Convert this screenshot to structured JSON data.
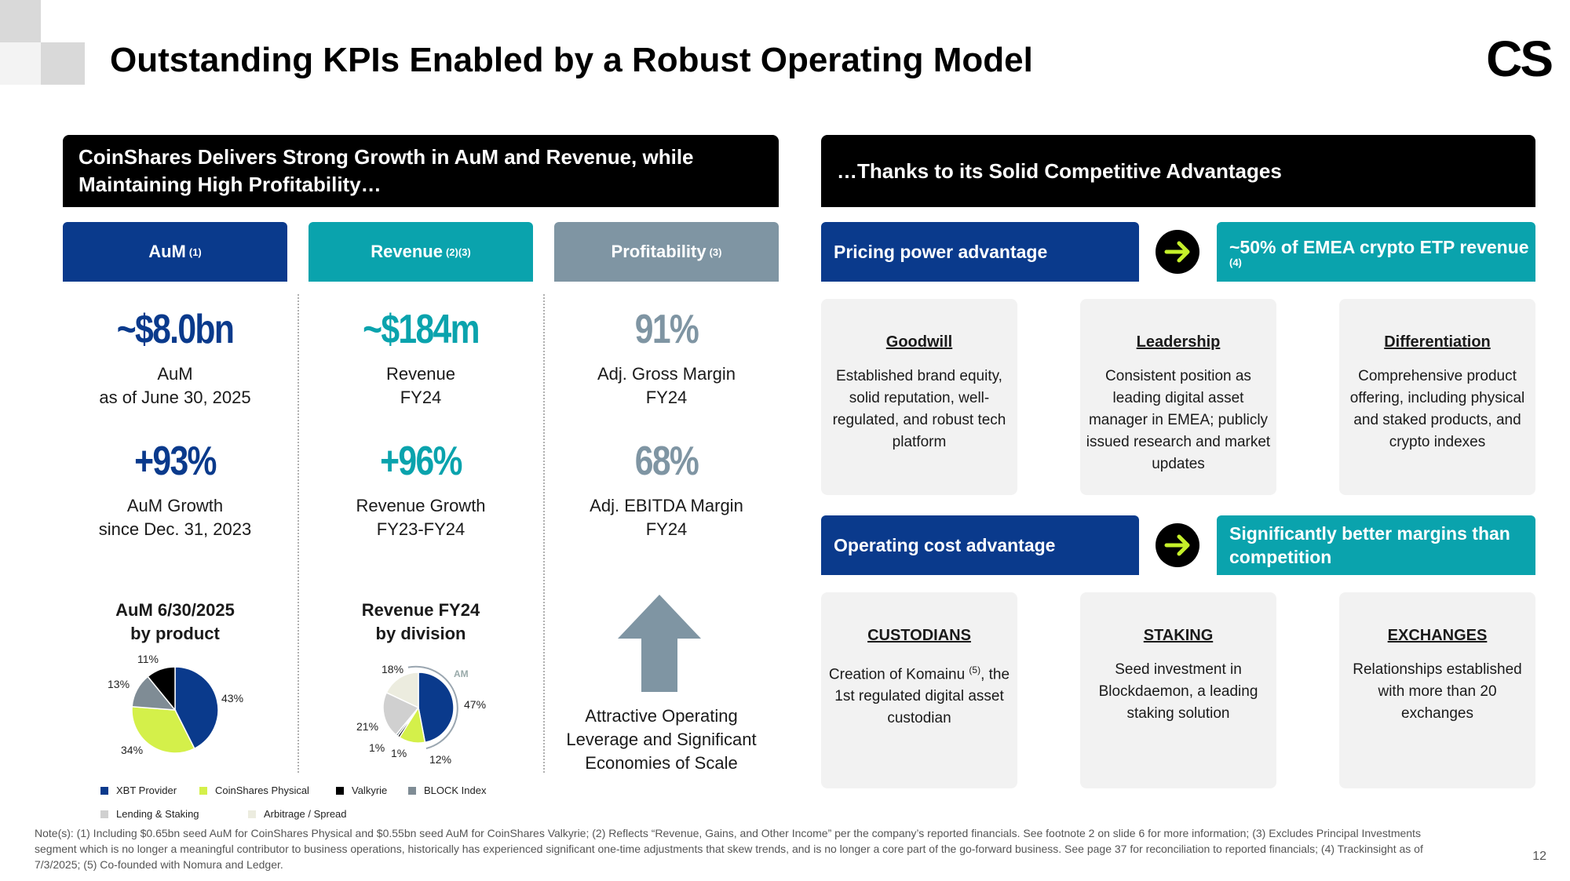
{
  "title": "Outstanding KPIs Enabled by a Robust Operating Model",
  "logo": "CS",
  "left_header": {
    "line1": "CoinShares Delivers Strong Growth in AuM and Revenue, while",
    "line2": "Maintaining High Profitability…"
  },
  "right_header": "…Thanks to its Solid Competitive Advantages",
  "tabs": [
    {
      "label": "AuM",
      "note": "(1)",
      "color": "#0a3a8c"
    },
    {
      "label": "Revenue",
      "note": "(2)(3)",
      "color": "#0aa3ad"
    },
    {
      "label": "Profitability",
      "note": "(3)",
      "color": "#7f95a3"
    }
  ],
  "kpis": {
    "aum": {
      "big1": "~$8.0bn",
      "sub1a": "AuM",
      "sub1b": "as of June 30, 2025",
      "big2": "+93%",
      "sub2a": "AuM Growth",
      "sub2b": "since Dec. 31, 2023",
      "color": "#0a3a8c"
    },
    "revenue": {
      "big1": "~$184m",
      "sub1a": "Revenue",
      "sub1b": "FY24",
      "big2": "+96%",
      "sub2a": "Revenue Growth",
      "sub2b": "FY23-FY24",
      "color": "#0aa3ad"
    },
    "profit": {
      "big1": "91%",
      "sub1a": "Adj. Gross Margin",
      "sub1b": "FY24",
      "big2": "68%",
      "sub2a": "Adj. EBITDA Margin",
      "sub2b": "FY24",
      "color": "#7f95a3"
    }
  },
  "charts": {
    "aum_title1": "AuM 6/30/2025",
    "aum_title2": "by product",
    "rev_title1": "Revenue FY24",
    "rev_title2": "by division",
    "am_label": "AM"
  },
  "chart_data": [
    {
      "type": "pie",
      "title": "AuM 6/30/2025 by product",
      "slices": [
        {
          "name": "XBT Provider",
          "value": 43,
          "label": "43%",
          "color": "#0a3a8c"
        },
        {
          "name": "CoinShares Physical",
          "value": 34,
          "label": "34%",
          "color": "#d4f04a"
        },
        {
          "name": "BLOCK Index",
          "value": 13,
          "label": "13%",
          "color": "#7f8c95"
        },
        {
          "name": "Valkyrie",
          "value": 11,
          "label": "11%",
          "color": "#000000"
        }
      ]
    },
    {
      "type": "pie",
      "title": "Revenue FY24 by division",
      "slices": [
        {
          "name": "XBT Provider",
          "value": 47,
          "label": "47%",
          "color": "#0a3a8c"
        },
        {
          "name": "CoinShares Physical",
          "value": 12,
          "label": "12%",
          "color": "#d4f04a"
        },
        {
          "name": "Valkyrie",
          "value": 1,
          "label": "1%",
          "color": "#000000"
        },
        {
          "name": "BLOCK Index",
          "value": 1,
          "label": "1%",
          "color": "#7f8c95"
        },
        {
          "name": "Lending & Staking",
          "value": 21,
          "label": "21%",
          "color": "#d0d0d0"
        },
        {
          "name": "Arbitrage / Spread",
          "value": 18,
          "label": "18%",
          "color": "#ececdf"
        }
      ]
    }
  ],
  "legend": [
    {
      "label": "XBT Provider",
      "color": "#0a3a8c"
    },
    {
      "label": "CoinShares Physical",
      "color": "#d4f04a"
    },
    {
      "label": "Valkyrie",
      "color": "#000000"
    },
    {
      "label": "BLOCK Index",
      "color": "#7f8c95"
    },
    {
      "label": "Lending & Staking",
      "color": "#d0d0d0"
    },
    {
      "label": "Arbitrage / Spread",
      "color": "#ececdf"
    }
  ],
  "leverage": {
    "line1": "Attractive Operating",
    "line2": "Leverage and Significant",
    "line3": "Economies of Scale"
  },
  "pricing": {
    "label": "Pricing power advantage",
    "result": "~50% of EMEA crypto ETP revenue",
    "result_note": "(4)"
  },
  "operating": {
    "label": "Operating cost advantage",
    "result1": "Significantly better margins than",
    "result2": "competition"
  },
  "cards_top": [
    {
      "title": "Goodwill",
      "body": "Established brand equity, solid reputation, well-regulated, and robust tech platform"
    },
    {
      "title": "Leadership",
      "body": "Consistent position as leading digital asset manager in EMEA; publicly issued research and market updates"
    },
    {
      "title": "Differentiation",
      "body": "Comprehensive product offering, including physical and staked products, and crypto indexes"
    }
  ],
  "cards_bottom": [
    {
      "title": "CUSTODIANS",
      "body_pre": "Creation of Komainu",
      "body_note": "(5)",
      "body_post": ", the 1st regulated digital asset custodian"
    },
    {
      "title": "STAKING",
      "body": "Seed investment in Blockdaemon, a leading staking solution"
    },
    {
      "title": "EXCHANGES",
      "body": "Relationships established with more than 20 exchanges"
    }
  ],
  "note": "Note(s): (1) Including $0.65bn seed AuM for CoinShares Physical and $0.55bn seed AuM for CoinShares Valkyrie; (2) Reflects “Revenue, Gains, and Other Income” per the company’s reported financials. See footnote 2 on slide 6 for more information;  (3) Excludes Principal Investments segment which is no longer a meaningful contributor to business operations, historically has experienced significant one-time adjustments that skew trends, and is no longer a core part of the go-forward business. See page 37 for reconciliation to reported financials; (4) Trackinsight as of 7/3/2025; (5) Co-founded with Nomura and Ledger.",
  "page_number": "12"
}
